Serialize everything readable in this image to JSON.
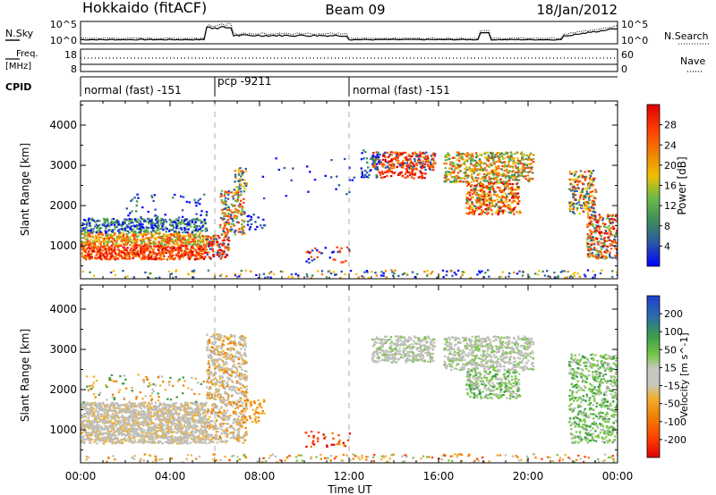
{
  "header": {
    "station": "Hokkaido (fitACF)",
    "beam": "Beam 09",
    "date": "18/Jan/2012"
  },
  "noise_panel": {
    "left_label": "N.Sky",
    "left_ticks": [
      "10^5",
      "10^0"
    ],
    "right_label": "N.Search",
    "right_ticks": [
      "10^5",
      "10^0"
    ]
  },
  "freq_panel": {
    "left_label_1": "Freq.",
    "left_label_2": "[MHz]",
    "left_ticks": [
      "18",
      "8"
    ],
    "right_label": "Nave",
    "right_ticks": [
      "60",
      "0"
    ]
  },
  "cpid_panel": {
    "label": "CPID",
    "segments": [
      {
        "start_hr": 0,
        "end_hr": 6,
        "label": "normal (fast) -151"
      },
      {
        "start_hr": 6,
        "end_hr": 12,
        "label": "pcp -9211"
      },
      {
        "start_hr": 12,
        "end_hr": 24,
        "label": "normal (fast) -151"
      }
    ]
  },
  "x_axis": {
    "label": "Time UT",
    "ticks": [
      "00:00",
      "04:00",
      "08:00",
      "12:00",
      "16:00",
      "20:00",
      "00:00"
    ],
    "tick_hours": [
      0,
      4,
      8,
      12,
      16,
      20,
      24
    ],
    "range_hr": [
      0,
      24
    ]
  },
  "colors": {
    "power": [
      "#0000ff",
      "#2a55a8",
      "#3c8c5a",
      "#6ab94a",
      "#f0c000",
      "#f08000",
      "#ff4000",
      "#e00000"
    ],
    "velocity": [
      "#e00000",
      "#ff4000",
      "#f08000",
      "#f0b030",
      "#c8c8c0",
      "#7ac84a",
      "#3c9c4a",
      "#2a6ab0",
      "#2040d0"
    ],
    "ground_scatter": "#bebeb8"
  },
  "chart_data": [
    {
      "type": "heatmap",
      "title": "",
      "xlabel": "",
      "ylabel": "Slant Range [km]",
      "ylim": [
        180,
        4600
      ],
      "xlim": [
        0,
        24
      ],
      "yticks": [
        1000,
        2000,
        3000,
        4000
      ],
      "colorbar": {
        "label": "Power [dB]",
        "ticks": [
          "4",
          "8",
          "12",
          "16",
          "20",
          "24",
          "28"
        ],
        "range": [
          0,
          32
        ]
      },
      "regions": [
        {
          "t0": 0.0,
          "t1": 5.6,
          "r0": 680,
          "r1": 1620,
          "level": "red-orange"
        },
        {
          "t0": 0.0,
          "t1": 5.6,
          "r0": 1350,
          "r1": 1700,
          "level": "blue-green"
        },
        {
          "t0": 5.6,
          "t1": 7.4,
          "r0": 700,
          "r1": 3000,
          "level": "orange"
        },
        {
          "t0": 13.0,
          "t1": 15.8,
          "r0": 2700,
          "r1": 3350,
          "level": "red"
        },
        {
          "t0": 16.2,
          "t1": 20.2,
          "r0": 1800,
          "r1": 3350,
          "level": "red-orange"
        },
        {
          "t0": 21.8,
          "t1": 24.0,
          "r0": 700,
          "r1": 2900,
          "level": "mixed"
        },
        {
          "t0": 6.0,
          "t1": 24.0,
          "r0": 220,
          "r1": 420,
          "level": "mixed"
        }
      ]
    },
    {
      "type": "heatmap",
      "title": "",
      "xlabel": "Time UT",
      "ylabel": "Slant Range [km]",
      "ylim": [
        180,
        4600
      ],
      "xlim": [
        0,
        24
      ],
      "yticks": [
        1000,
        2000,
        3000,
        4000
      ],
      "colorbar": {
        "label": "Velocity [m s^-1]",
        "ticks": [
          "200",
          "100",
          "50",
          "15",
          "-15",
          "-50",
          "-100",
          "-200"
        ],
        "range": [
          -250,
          250
        ]
      },
      "regions": [
        {
          "t0": 0.0,
          "t1": 5.6,
          "r0": 680,
          "r1": 1700,
          "level": "ground scatter"
        },
        {
          "t0": 5.6,
          "t1": 7.4,
          "r0": 700,
          "r1": 3400,
          "level": "ground scatter"
        },
        {
          "t0": 13.0,
          "t1": 15.8,
          "r0": 2700,
          "r1": 3350,
          "level": "ground scatter"
        },
        {
          "t0": 16.2,
          "t1": 20.2,
          "r0": 1800,
          "r1": 3350,
          "level": "ground scatter / positive"
        },
        {
          "t0": 21.8,
          "t1": 24.0,
          "r0": 700,
          "r1": 2900,
          "level": "positive"
        },
        {
          "t0": 6.0,
          "t1": 24.0,
          "r0": 220,
          "r1": 420,
          "level": "mixed"
        }
      ]
    }
  ]
}
